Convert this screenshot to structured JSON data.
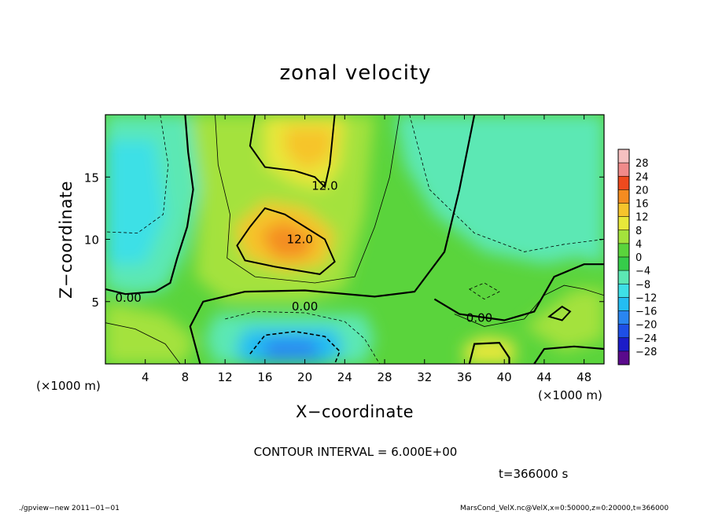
{
  "title": "zonal velocity",
  "xlabel": "X−coordinate",
  "ylabel": "Z−coordinate",
  "x_unit": "(×1000 m)",
  "y_unit": "(×1000 m)",
  "contour_interval_text": "CONTOUR INTERVAL = 6.000E+00",
  "time_text": "t=366000 s",
  "footer_left": "./gpview−new  2011−01−01",
  "footer_right": "MarsCond_VelX.nc@VelX,x=0:50000,z=0:20000,t=366000",
  "chart_data": {
    "type": "heatmap",
    "title": "zonal velocity",
    "xlabel": "X−coordinate",
    "ylabel": "Z−coordinate",
    "x_unit": "(×1000 m)",
    "y_unit": "(×1000 m)",
    "xlim": [
      0,
      50
    ],
    "ylim": [
      0,
      20
    ],
    "x_ticks": [
      4,
      8,
      12,
      16,
      20,
      24,
      28,
      32,
      36,
      40,
      44,
      48
    ],
    "y_ticks": [
      5,
      10,
      15
    ],
    "contour_interval": 6.0,
    "contour_labels": [
      {
        "text": "12.0",
        "x": 22,
        "y": 14.3
      },
      {
        "text": "12.0",
        "x": 19.5,
        "y": 10.0
      },
      {
        "text": "0.00",
        "x": 2.3,
        "y": 5.3
      },
      {
        "text": "0.00",
        "x": 20,
        "y": 4.6
      },
      {
        "text": "0.00",
        "x": 37.5,
        "y": 3.7
      }
    ],
    "colorbar": {
      "levels": [
        -28,
        -24,
        -20,
        -16,
        -12,
        -8,
        -4,
        0,
        4,
        8,
        12,
        16,
        20,
        24,
        28
      ],
      "colors": [
        "#5a0a8c",
        "#1c1cc8",
        "#1e4fe6",
        "#2a86f0",
        "#24bdf2",
        "#3ee0e6",
        "#5ce8b4",
        "#36cc4a",
        "#5ad43c",
        "#a4e23c",
        "#e8e83a",
        "#f6c42c",
        "#f48c20",
        "#ee4a1e",
        "#f08a8a",
        "#f6c0c0"
      ]
    },
    "features": [
      {
        "type": "max",
        "x": 19,
        "y": 9,
        "value": 16
      },
      {
        "type": "max",
        "x": 21,
        "y": 17,
        "value": 13
      },
      {
        "type": "min",
        "x": 18.5,
        "y": 1.2,
        "value": -18
      },
      {
        "type": "max",
        "x": 38,
        "y": 0.8,
        "value": 11
      },
      {
        "type": "max",
        "x": 46,
        "y": 4,
        "value": 10
      },
      {
        "type": "min",
        "x": 1.5,
        "y": 12,
        "value": -10
      },
      {
        "type": "min",
        "x": 44,
        "y": 11,
        "value": -7
      }
    ]
  }
}
